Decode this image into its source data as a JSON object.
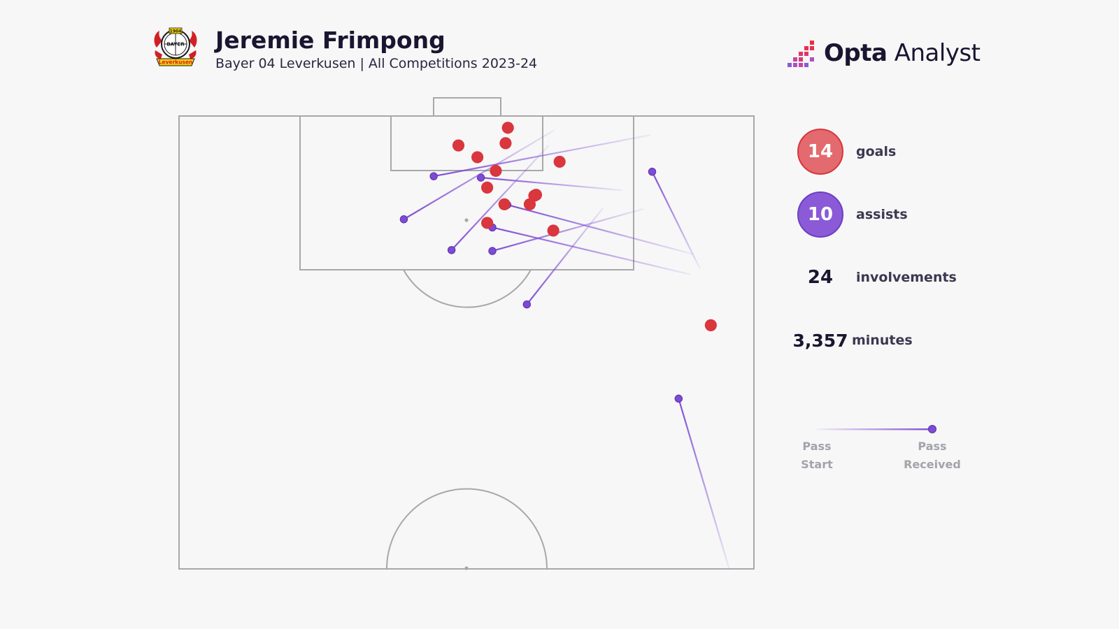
{
  "header": {
    "title": "Jeremie Frimpong",
    "subtitle": "Bayer 04 Leverkusen | All Competitions 2023-24",
    "crest_text": "BAYER",
    "crest_year": "1904",
    "crest_banner": "Leverkusen"
  },
  "brand": {
    "bold": "Opta",
    "light": " Analyst"
  },
  "stats": {
    "goals_value": "14",
    "goals_label": "goals",
    "assists_value": "10",
    "assists_label": "assists",
    "involvements_value": "24",
    "involvements_label": "involvements",
    "minutes_value": "3,357",
    "minutes_label": "minutes"
  },
  "legend": {
    "start_label": "Pass\nStart",
    "end_label": "Pass\nReceived"
  },
  "colors": {
    "goal": "#d9363e",
    "assist": "#7e4bd4",
    "pitch_line": "#a8a8a8",
    "goal_badge": "#e36a6e",
    "assist_badge": "#8b5ad6"
  },
  "chart_data": {
    "type": "scatter",
    "description_units": "pitch coordinates: x = 0 (left touchline) to 100 (right touchline); y = 0 (attacking goal line) to 100 (halfway line)",
    "goals": [
      {
        "x": 57.2,
        "y": 2.6
      },
      {
        "x": 48.6,
        "y": 6.5
      },
      {
        "x": 56.8,
        "y": 6.0
      },
      {
        "x": 51.9,
        "y": 9.1
      },
      {
        "x": 66.2,
        "y": 10.1
      },
      {
        "x": 55.1,
        "y": 12.1
      },
      {
        "x": 53.6,
        "y": 15.8
      },
      {
        "x": 61.8,
        "y": 17.6
      },
      {
        "x": 61.0,
        "y": 19.5
      },
      {
        "x": 56.6,
        "y": 19.5
      },
      {
        "x": 53.6,
        "y": 23.6
      },
      {
        "x": 65.1,
        "y": 25.3
      },
      {
        "x": 92.5,
        "y": 46.2
      },
      {
        "x": 62.1,
        "y": 17.4
      }
    ],
    "assists": [
      {
        "start_x": 82.0,
        "start_y": 4.2,
        "end_x": 44.3,
        "end_y": 13.3
      },
      {
        "start_x": 77.1,
        "start_y": 16.4,
        "end_x": 52.5,
        "end_y": 13.6
      },
      {
        "start_x": 65.3,
        "start_y": 3.1,
        "end_x": 39.1,
        "end_y": 22.8
      },
      {
        "start_x": 64.3,
        "start_y": 6.5,
        "end_x": 47.4,
        "end_y": 29.6
      },
      {
        "start_x": 90.6,
        "start_y": 33.7,
        "end_x": 82.3,
        "end_y": 12.3
      },
      {
        "start_x": 89.4,
        "start_y": 30.5,
        "end_x": 57.1,
        "end_y": 19.6
      },
      {
        "start_x": 89.0,
        "start_y": 35.0,
        "end_x": 54.5,
        "end_y": 24.6
      },
      {
        "start_x": 80.8,
        "start_y": 20.5,
        "end_x": 54.5,
        "end_y": 29.8
      },
      {
        "start_x": 73.8,
        "start_y": 20.2,
        "end_x": 60.5,
        "end_y": 41.6
      },
      {
        "start_x": 95.7,
        "start_y": 100.0,
        "end_x": 86.9,
        "end_y": 62.4
      }
    ]
  }
}
